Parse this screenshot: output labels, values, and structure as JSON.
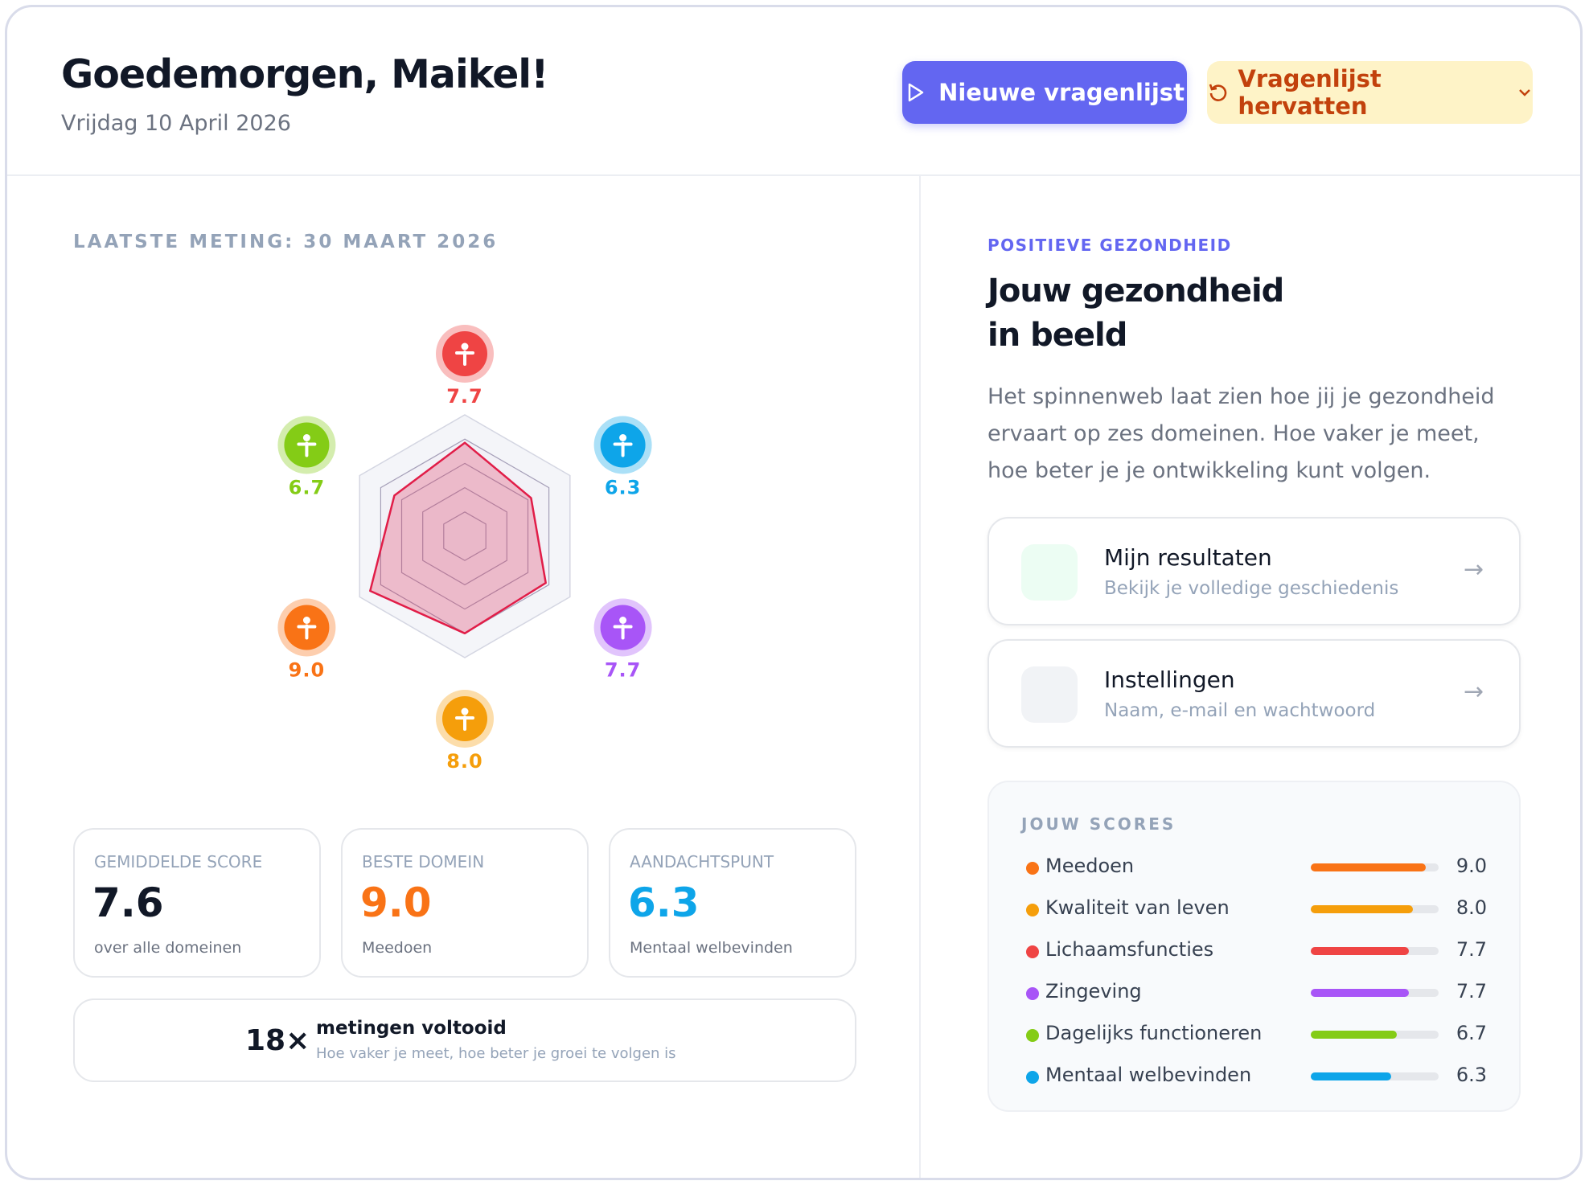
{
  "header": {
    "greeting": "Goedemorgen, Maikel!",
    "date": "Vrijdag 10 April 2026",
    "primary_button": "Nieuwe vragenlijst",
    "secondary_button": "Vragenlijst hervatten"
  },
  "chart_data": {
    "type": "radar",
    "title": "LAATSTE METING: 30 MAART 2026",
    "rlim": [
      0,
      10
    ],
    "rticks": [
      2,
      4,
      6,
      8,
      10
    ],
    "grid": true,
    "axis_colors": [
      "#ef4444",
      "#0ea5e9",
      "#a855f7",
      "#f59e0b",
      "#f97316",
      "#84cc16"
    ],
    "series": [
      {
        "color": "#e11d48",
        "values": [
          7.7,
          6.3,
          7.7,
          8.0,
          9.0,
          6.7
        ],
        "value_labels": [
          "7.7",
          "6.3",
          "7.7",
          "8.0",
          "9.0",
          "6.7"
        ]
      }
    ]
  },
  "stats": [
    {
      "label": "GEMIDDELDE SCORE",
      "value": "7.6",
      "caption": "over alle domeinen"
    },
    {
      "label": "BESTE DOMEIN",
      "value": "9.0",
      "caption": "Meedoen"
    },
    {
      "label": "AANDACHTSPUNT",
      "value": "6.3",
      "caption": "Mentaal welbevinden"
    }
  ],
  "count": {
    "value": "18×",
    "title": "metingen voltooid",
    "subtitle": "Hoe vaker je meet, hoe beter je groei te volgen is"
  },
  "intro": {
    "eyebrow": "POSITIEVE GEZONDHEID",
    "title_lines": [
      "Jouw gezondheid",
      "in beeld"
    ],
    "text": "Het spinnenweb laat zien hoe jij je gezondheid ervaart op zes domeinen. Hoe vaker je meet, hoe beter je je ontwikkeling kunt volgen."
  },
  "links": [
    {
      "title": "Mijn resultaten",
      "subtitle": "Bekijk je volledige geschiedenis"
    },
    {
      "title": "Instellingen",
      "subtitle": "Naam, e-mail en wachtwoord"
    }
  ],
  "scores": {
    "title": "JOUW SCORES",
    "xlim": [
      0,
      10
    ],
    "names": [
      "Meedoen",
      "Kwaliteit van leven",
      "Lichaamsfuncties",
      "Zingeving",
      "Dagelijks functioneren",
      "Mentaal welbevinden"
    ],
    "colors": [
      "#f97316",
      "#f59e0b",
      "#ef4444",
      "#a855f7",
      "#84cc16",
      "#0ea5e9"
    ],
    "values": [
      9.0,
      8.0,
      7.7,
      7.7,
      6.7,
      6.3
    ],
    "value_labels": [
      "9.0",
      "8.0",
      "7.7",
      "7.7",
      "6.7",
      "6.3"
    ]
  }
}
